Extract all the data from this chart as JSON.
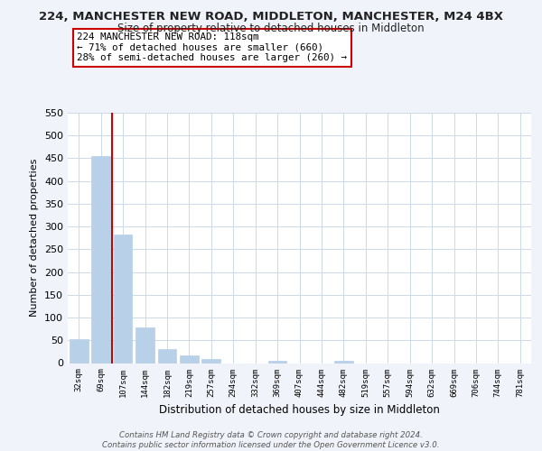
{
  "title": "224, MANCHESTER NEW ROAD, MIDDLETON, MANCHESTER, M24 4BX",
  "subtitle": "Size of property relative to detached houses in Middleton",
  "xlabel": "Distribution of detached houses by size in Middleton",
  "ylabel": "Number of detached properties",
  "bar_labels": [
    "32sqm",
    "69sqm",
    "107sqm",
    "144sqm",
    "182sqm",
    "219sqm",
    "257sqm",
    "294sqm",
    "332sqm",
    "369sqm",
    "407sqm",
    "444sqm",
    "482sqm",
    "519sqm",
    "557sqm",
    "594sqm",
    "632sqm",
    "669sqm",
    "706sqm",
    "744sqm",
    "781sqm"
  ],
  "bar_values": [
    53,
    455,
    283,
    78,
    31,
    17,
    9,
    0,
    0,
    5,
    0,
    0,
    4,
    0,
    0,
    0,
    0,
    0,
    0,
    0,
    0
  ],
  "bar_color": "#b8d0e8",
  "bar_edge_color": "#b8d0e8",
  "vline_color": "#cc0000",
  "vline_x_index": 2,
  "ylim": [
    0,
    550
  ],
  "yticks": [
    0,
    50,
    100,
    150,
    200,
    250,
    300,
    350,
    400,
    450,
    500,
    550
  ],
  "annotation_text": "224 MANCHESTER NEW ROAD: 118sqm\n← 71% of detached houses are smaller (660)\n28% of semi-detached houses are larger (260) →",
  "footer_text": "Contains HM Land Registry data © Crown copyright and database right 2024.\nContains public sector information licensed under the Open Government Licence v3.0.",
  "bg_color": "#f0f4fa",
  "plot_bg_color": "#ffffff",
  "grid_color": "#ccd9e8"
}
